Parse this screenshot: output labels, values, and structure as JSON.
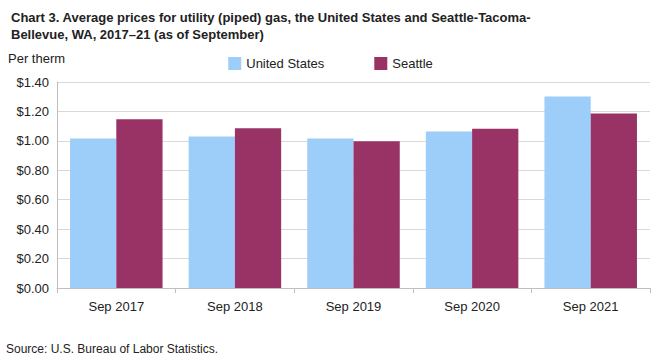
{
  "chart_data": {
    "type": "bar",
    "title": "Chart 3. Average prices for utility (piped) gas, the United States and Seattle-Tacoma-\nBellevue, WA, 2017–21 (as of September)",
    "y_label": "Per therm",
    "source": "Source: U.S. Bureau of Labor Statistics.",
    "categories": [
      "Sep 2017",
      "Sep 2018",
      "Sep 2019",
      "Sep 2020",
      "Sep 2021"
    ],
    "series": [
      {
        "name": "United States",
        "color": "#9dcdf9",
        "values": [
          1.016,
          1.03,
          1.016,
          1.064,
          1.302
        ]
      },
      {
        "name": "Seattle",
        "color": "#993366",
        "values": [
          1.146,
          1.085,
          0.997,
          1.083,
          1.186
        ]
      }
    ],
    "ylim": [
      0,
      1.4
    ],
    "yticks": [
      {
        "value": 0,
        "label": "$0.00"
      },
      {
        "value": 0.2,
        "label": "$0.20"
      },
      {
        "value": 0.4,
        "label": "$0.40"
      },
      {
        "value": 0.6,
        "label": "$0.60"
      },
      {
        "value": 0.8,
        "label": "$0.80"
      },
      {
        "value": 1.0,
        "label": "$1.00"
      },
      {
        "value": 1.2,
        "label": "$1.20"
      },
      {
        "value": 1.4,
        "label": "$1.40"
      }
    ],
    "grid": true,
    "legend": "top"
  }
}
